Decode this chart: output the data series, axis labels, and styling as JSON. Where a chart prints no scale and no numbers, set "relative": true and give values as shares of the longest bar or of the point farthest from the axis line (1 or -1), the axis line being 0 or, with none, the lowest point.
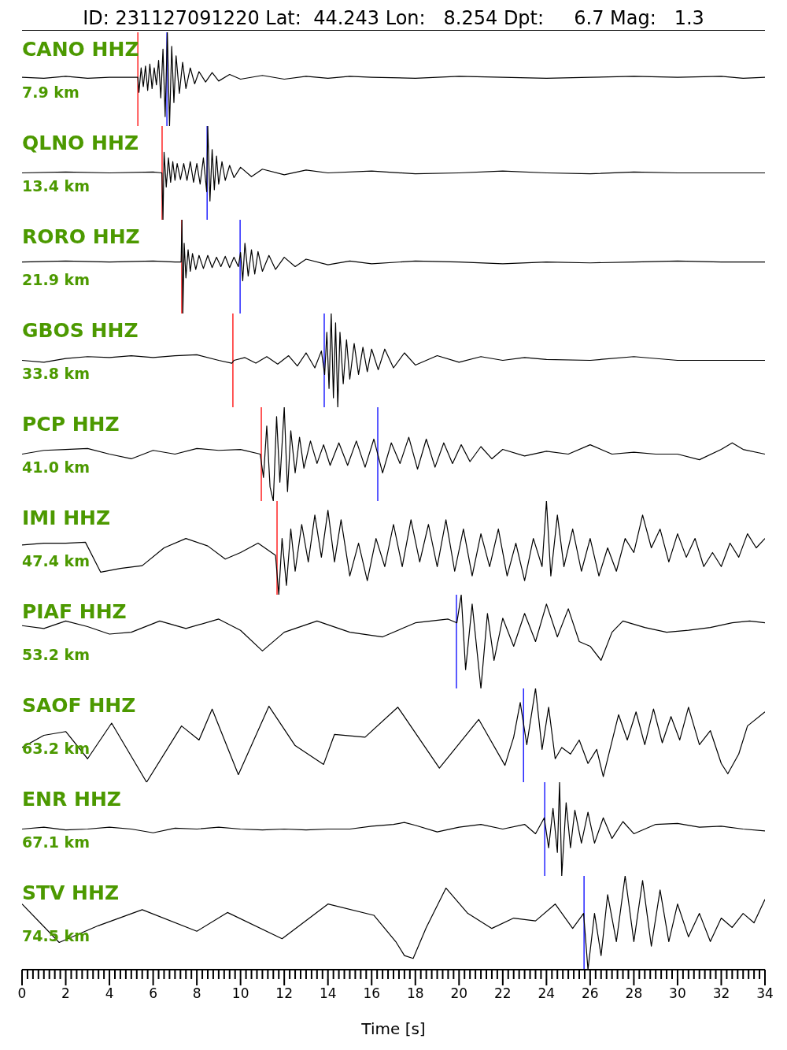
{
  "chart_data": [
    {
      "type": "line",
      "title": "ID: 231127091220 Lat:  44.243 Lon:   8.254 Dpt:     6.7 Mag:   1.3",
      "relative": true,
      "xlim": [
        0,
        34
      ],
      "tick_labels": false,
      "marker": "none",
      "annotations": [
        "CANO HHZ",
        "7.9 km"
      ],
      "ref_lines": [
        {
          "axis": "x",
          "value": 5.3,
          "color": "#ff0000"
        },
        {
          "axis": "x",
          "value": 6.63,
          "color": "#0000ff"
        }
      ],
      "series": [
        {
          "color": "#000000",
          "x": [
            0,
            1,
            2,
            3,
            4,
            5,
            5.3,
            5.35,
            5.45,
            5.55,
            5.65,
            5.75,
            5.85,
            5.95,
            6.05,
            6.15,
            6.25,
            6.35,
            6.45,
            6.55,
            6.65,
            6.75,
            6.85,
            6.95,
            7.05,
            7.2,
            7.35,
            7.5,
            7.7,
            7.9,
            8.1,
            8.4,
            8.7,
            9,
            9.5,
            10,
            11,
            12,
            13,
            14,
            15,
            16,
            18,
            20,
            22,
            24,
            26,
            28,
            30,
            32,
            33,
            34
          ],
          "values": [
            0.52,
            0.51,
            0.53,
            0.51,
            0.52,
            0.52,
            0.52,
            0.36,
            0.62,
            0.42,
            0.64,
            0.38,
            0.66,
            0.4,
            0.62,
            0.44,
            0.7,
            0.3,
            0.82,
            0.1,
            1.0,
            0.0,
            0.85,
            0.25,
            0.75,
            0.35,
            0.68,
            0.4,
            0.62,
            0.45,
            0.58,
            0.47,
            0.57,
            0.48,
            0.55,
            0.5,
            0.54,
            0.5,
            0.53,
            0.51,
            0.53,
            0.52,
            0.51,
            0.53,
            0.52,
            0.51,
            0.52,
            0.53,
            0.52,
            0.53,
            0.51,
            0.52
          ]
        }
      ]
    },
    {
      "type": "line",
      "relative": true,
      "xlim": [
        0,
        34
      ],
      "tick_labels": false,
      "marker": "none",
      "annotations": [
        "QLNO HHZ",
        "13.4 km"
      ],
      "ref_lines": [
        {
          "axis": "x",
          "value": 6.41,
          "color": "#ff0000"
        },
        {
          "axis": "x",
          "value": 8.47,
          "color": "#0000ff"
        }
      ],
      "series": [
        {
          "color": "#000000",
          "x": [
            0,
            2,
            4,
            6,
            6.4,
            6.45,
            6.5,
            6.6,
            6.7,
            6.8,
            6.9,
            7.0,
            7.1,
            7.25,
            7.4,
            7.55,
            7.7,
            7.85,
            8.0,
            8.15,
            8.3,
            8.45,
            8.5,
            8.6,
            8.7,
            8.8,
            8.9,
            9.0,
            9.15,
            9.3,
            9.5,
            9.7,
            10,
            10.5,
            11,
            12,
            13,
            14,
            16,
            18,
            20,
            22,
            24,
            26,
            28,
            30,
            32,
            34
          ],
          "values": [
            0.5,
            0.51,
            0.5,
            0.51,
            0.5,
            0.0,
            0.72,
            0.35,
            0.66,
            0.4,
            0.62,
            0.42,
            0.6,
            0.43,
            0.6,
            0.42,
            0.62,
            0.4,
            0.6,
            0.38,
            0.66,
            0.3,
            1.0,
            0.2,
            0.75,
            0.32,
            0.68,
            0.38,
            0.62,
            0.42,
            0.58,
            0.45,
            0.56,
            0.46,
            0.54,
            0.48,
            0.53,
            0.5,
            0.52,
            0.49,
            0.5,
            0.52,
            0.5,
            0.49,
            0.51,
            0.5,
            0.5,
            0.5
          ]
        }
      ]
    },
    {
      "type": "line",
      "relative": true,
      "xlim": [
        0,
        34
      ],
      "tick_labels": false,
      "marker": "none",
      "annotations": [
        "RORO HHZ",
        "21.9 km"
      ],
      "ref_lines": [
        {
          "axis": "x",
          "value": 7.31,
          "color": "#ff0000"
        },
        {
          "axis": "x",
          "value": 9.98,
          "color": "#0000ff"
        }
      ],
      "series": [
        {
          "color": "#000000",
          "x": [
            0,
            2,
            4,
            6,
            7,
            7.28,
            7.32,
            7.36,
            7.42,
            7.5,
            7.6,
            7.7,
            7.8,
            7.95,
            8.1,
            8.3,
            8.5,
            8.7,
            8.9,
            9.1,
            9.3,
            9.5,
            9.7,
            9.9,
            10.0,
            10.1,
            10.2,
            10.35,
            10.5,
            10.65,
            10.8,
            11,
            11.3,
            11.6,
            12,
            12.5,
            13,
            14,
            15,
            16,
            18,
            20,
            22,
            24,
            26,
            28,
            30,
            32,
            34
          ],
          "values": [
            0.55,
            0.56,
            0.55,
            0.56,
            0.55,
            0.55,
            1.0,
            0.0,
            0.75,
            0.38,
            0.68,
            0.45,
            0.64,
            0.47,
            0.62,
            0.48,
            0.62,
            0.49,
            0.6,
            0.5,
            0.61,
            0.49,
            0.6,
            0.5,
            0.65,
            0.35,
            0.75,
            0.4,
            0.68,
            0.42,
            0.66,
            0.45,
            0.62,
            0.47,
            0.6,
            0.5,
            0.58,
            0.52,
            0.56,
            0.53,
            0.56,
            0.55,
            0.53,
            0.55,
            0.54,
            0.55,
            0.56,
            0.55,
            0.55
          ]
        }
      ]
    },
    {
      "type": "line",
      "relative": true,
      "xlim": [
        0,
        34
      ],
      "tick_labels": false,
      "marker": "none",
      "annotations": [
        "GBOS HHZ",
        "33.8 km"
      ],
      "ref_lines": [
        {
          "axis": "x",
          "value": 9.65,
          "color": "#ff0000"
        },
        {
          "axis": "x",
          "value": 13.83,
          "color": "#0000ff"
        }
      ],
      "series": [
        {
          "color": "#000000",
          "x": [
            0,
            1,
            2,
            3,
            4,
            5,
            6,
            7,
            8,
            9,
            9.6,
            9.7,
            10.2,
            10.7,
            11.2,
            11.7,
            12.2,
            12.6,
            13,
            13.4,
            13.7,
            13.85,
            13.95,
            14.05,
            14.15,
            14.25,
            14.35,
            14.45,
            14.55,
            14.7,
            14.85,
            15,
            15.2,
            15.4,
            15.6,
            15.8,
            16,
            16.3,
            16.6,
            17,
            17.5,
            18,
            19,
            20,
            21,
            22,
            23,
            24,
            26,
            28,
            30,
            32,
            34
          ],
          "values": [
            0.5,
            0.48,
            0.52,
            0.54,
            0.53,
            0.55,
            0.53,
            0.55,
            0.56,
            0.5,
            0.47,
            0.5,
            0.53,
            0.47,
            0.54,
            0.46,
            0.55,
            0.44,
            0.58,
            0.42,
            0.6,
            0.35,
            0.8,
            0.2,
            1.0,
            0.1,
            0.9,
            0.0,
            0.8,
            0.25,
            0.72,
            0.3,
            0.68,
            0.35,
            0.64,
            0.38,
            0.62,
            0.4,
            0.62,
            0.42,
            0.58,
            0.45,
            0.55,
            0.48,
            0.54,
            0.5,
            0.53,
            0.51,
            0.5,
            0.54,
            0.5,
            0.5,
            0.5
          ]
        }
      ]
    },
    {
      "type": "line",
      "relative": true,
      "xlim": [
        0,
        34
      ],
      "tick_labels": false,
      "marker": "none",
      "annotations": [
        "PCP HHZ",
        "41.0 km"
      ],
      "ref_lines": [
        {
          "axis": "x",
          "value": 10.95,
          "color": "#ff0000"
        },
        {
          "axis": "x",
          "value": 16.28,
          "color": "#0000ff"
        }
      ],
      "series": [
        {
          "color": "#000000",
          "x": [
            0,
            1,
            2,
            3,
            4,
            5,
            6,
            7,
            8,
            9,
            10,
            10.9,
            11.05,
            11.2,
            11.35,
            11.5,
            11.65,
            11.8,
            12.0,
            12.15,
            12.3,
            12.5,
            12.7,
            12.9,
            13.2,
            13.5,
            13.8,
            14.1,
            14.5,
            14.9,
            15.3,
            15.7,
            16.1,
            16.5,
            16.9,
            17.3,
            17.7,
            18.1,
            18.5,
            18.9,
            19.3,
            19.7,
            20.1,
            20.5,
            21,
            21.5,
            22,
            23,
            24,
            25,
            26,
            27,
            28,
            29,
            30,
            31,
            32,
            32.5,
            33,
            34
          ],
          "values": [
            0.5,
            0.54,
            0.55,
            0.56,
            0.5,
            0.45,
            0.54,
            0.5,
            0.56,
            0.54,
            0.55,
            0.5,
            0.25,
            0.8,
            0.15,
            0.0,
            0.9,
            0.2,
            1.0,
            0.1,
            0.75,
            0.3,
            0.68,
            0.35,
            0.64,
            0.4,
            0.6,
            0.38,
            0.62,
            0.38,
            0.64,
            0.36,
            0.66,
            0.3,
            0.62,
            0.4,
            0.68,
            0.34,
            0.66,
            0.36,
            0.62,
            0.4,
            0.6,
            0.42,
            0.58,
            0.45,
            0.55,
            0.48,
            0.53,
            0.5,
            0.6,
            0.5,
            0.52,
            0.5,
            0.5,
            0.44,
            0.55,
            0.62,
            0.55,
            0.5
          ]
        }
      ]
    },
    {
      "type": "line",
      "relative": true,
      "xlim": [
        0,
        34
      ],
      "tick_labels": false,
      "marker": "none",
      "annotations": [
        "IMI HHZ",
        "47.4 km"
      ],
      "ref_lines": [
        {
          "axis": "x",
          "value": 11.67,
          "color": "#ff0000"
        }
      ],
      "series": [
        {
          "color": "#000000",
          "x": [
            0,
            1,
            2,
            2.9,
            3.6,
            4.5,
            5.5,
            6.5,
            7.5,
            8.5,
            9.3,
            10,
            10.8,
            11.6,
            11.75,
            11.9,
            12.1,
            12.3,
            12.5,
            12.8,
            13.1,
            13.4,
            13.7,
            14,
            14.3,
            14.6,
            15,
            15.4,
            15.8,
            16.2,
            16.6,
            17,
            17.4,
            17.8,
            18.2,
            18.6,
            19,
            19.4,
            19.8,
            20.2,
            20.6,
            21,
            21.4,
            21.8,
            22.2,
            22.6,
            23,
            23.4,
            23.8,
            24,
            24.2,
            24.5,
            24.8,
            25.2,
            25.6,
            26,
            26.4,
            26.8,
            27.2,
            27.6,
            28,
            28.4,
            28.8,
            29.2,
            29.6,
            30,
            30.4,
            30.8,
            31.2,
            31.6,
            32,
            32.4,
            32.8,
            33.2,
            33.6,
            34
          ],
          "values": [
            0.53,
            0.55,
            0.55,
            0.56,
            0.24,
            0.28,
            0.31,
            0.5,
            0.6,
            0.52,
            0.38,
            0.45,
            0.55,
            0.42,
            0.0,
            0.6,
            0.1,
            0.7,
            0.25,
            0.75,
            0.35,
            0.85,
            0.4,
            0.9,
            0.35,
            0.8,
            0.2,
            0.55,
            0.15,
            0.6,
            0.3,
            0.75,
            0.3,
            0.8,
            0.35,
            0.75,
            0.3,
            0.8,
            0.25,
            0.7,
            0.2,
            0.65,
            0.3,
            0.7,
            0.2,
            0.55,
            0.15,
            0.6,
            0.3,
            1.0,
            0.2,
            0.85,
            0.3,
            0.7,
            0.25,
            0.6,
            0.2,
            0.5,
            0.25,
            0.6,
            0.45,
            0.85,
            0.5,
            0.7,
            0.35,
            0.65,
            0.4,
            0.6,
            0.3,
            0.45,
            0.3,
            0.55,
            0.4,
            0.65,
            0.5,
            0.6
          ]
        }
      ]
    },
    {
      "type": "line",
      "relative": true,
      "xlim": [
        0,
        34
      ],
      "tick_labels": false,
      "marker": "none",
      "annotations": [
        "PIAF HHZ",
        "53.2 km"
      ],
      "ref_lines": [
        {
          "axis": "x",
          "value": 19.88,
          "color": "#0000ff"
        }
      ],
      "series": [
        {
          "color": "#000000",
          "x": [
            0,
            1,
            2,
            3,
            4,
            5,
            6.3,
            7.5,
            9,
            10,
            11,
            12,
            13.5,
            15,
            16.5,
            18,
            19.5,
            19.9,
            20.1,
            20.3,
            20.6,
            21,
            21.3,
            21.6,
            22,
            22.5,
            23,
            23.5,
            24,
            24.5,
            25,
            25.5,
            26,
            26.5,
            27,
            27.5,
            28.5,
            29.5,
            30.5,
            31.5,
            32.5,
            33.3,
            34
          ],
          "values": [
            0.67,
            0.64,
            0.72,
            0.66,
            0.58,
            0.6,
            0.72,
            0.64,
            0.74,
            0.62,
            0.4,
            0.6,
            0.72,
            0.6,
            0.55,
            0.7,
            0.74,
            0.7,
            1.0,
            0.2,
            0.9,
            0.0,
            0.8,
            0.3,
            0.75,
            0.45,
            0.8,
            0.5,
            0.9,
            0.55,
            0.85,
            0.5,
            0.45,
            0.3,
            0.6,
            0.72,
            0.65,
            0.6,
            0.62,
            0.65,
            0.7,
            0.72,
            0.7
          ]
        }
      ]
    },
    {
      "type": "line",
      "relative": true,
      "xlim": [
        0,
        34
      ],
      "tick_labels": false,
      "marker": "none",
      "annotations": [
        "SAOF HHZ",
        "63.2 km"
      ],
      "ref_lines": [
        {
          "axis": "x",
          "value": 22.95,
          "color": "#0000ff"
        }
      ],
      "series": [
        {
          "color": "#000000",
          "x": [
            0,
            1,
            2,
            3,
            4.1,
            5.7,
            7.3,
            8.1,
            8.7,
            9.9,
            11.3,
            12.5,
            13.8,
            14.3,
            15.7,
            17.2,
            19.1,
            20.9,
            22.1,
            22.5,
            22.8,
            23.1,
            23.5,
            23.8,
            24.1,
            24.4,
            24.7,
            25.1,
            25.5,
            25.9,
            26.3,
            26.6,
            27.3,
            27.7,
            28.1,
            28.5,
            28.9,
            29.3,
            29.7,
            30.1,
            30.5,
            31,
            31.5,
            32,
            32.3,
            32.8,
            33.2,
            34
          ],
          "values": [
            0.37,
            0.5,
            0.54,
            0.25,
            0.63,
            0.0,
            0.6,
            0.45,
            0.78,
            0.08,
            0.81,
            0.39,
            0.19,
            0.51,
            0.48,
            0.8,
            0.15,
            0.67,
            0.18,
            0.48,
            0.85,
            0.4,
            1.0,
            0.35,
            0.8,
            0.25,
            0.37,
            0.3,
            0.45,
            0.2,
            0.35,
            0.06,
            0.72,
            0.45,
            0.75,
            0.4,
            0.78,
            0.42,
            0.7,
            0.45,
            0.8,
            0.4,
            0.55,
            0.2,
            0.09,
            0.3,
            0.6,
            0.75
          ]
        }
      ]
    },
    {
      "type": "line",
      "relative": true,
      "xlim": [
        0,
        34
      ],
      "tick_labels": false,
      "marker": "none",
      "annotations": [
        "ENR HHZ",
        "67.1 km"
      ],
      "ref_lines": [
        {
          "axis": "x",
          "value": 23.92,
          "color": "#0000ff"
        }
      ],
      "series": [
        {
          "color": "#000000",
          "x": [
            0,
            1,
            2,
            3,
            4,
            5,
            6,
            7,
            8,
            9,
            10,
            11,
            12,
            13,
            14,
            15,
            16,
            17,
            17.5,
            18,
            19,
            20,
            21,
            22,
            23,
            23.5,
            23.9,
            24.1,
            24.3,
            24.5,
            24.6,
            24.7,
            24.9,
            25.1,
            25.3,
            25.6,
            25.9,
            26.2,
            26.6,
            27,
            27.5,
            28,
            29,
            30,
            31,
            32,
            33,
            34
          ],
          "values": [
            0.5,
            0.52,
            0.49,
            0.5,
            0.52,
            0.5,
            0.46,
            0.51,
            0.5,
            0.52,
            0.5,
            0.49,
            0.5,
            0.49,
            0.5,
            0.5,
            0.53,
            0.55,
            0.57,
            0.54,
            0.47,
            0.52,
            0.55,
            0.5,
            0.55,
            0.45,
            0.62,
            0.3,
            0.72,
            0.25,
            1.0,
            0.0,
            0.78,
            0.3,
            0.7,
            0.35,
            0.68,
            0.35,
            0.62,
            0.4,
            0.58,
            0.45,
            0.55,
            0.56,
            0.52,
            0.53,
            0.5,
            0.48
          ]
        }
      ]
    },
    {
      "type": "line",
      "relative": true,
      "xlim": [
        0,
        34
      ],
      "marker": "none",
      "xlabel": "Time [s]",
      "annotations": [
        "STV HHZ",
        "74.5 km"
      ],
      "ref_lines": [
        {
          "axis": "x",
          "value": 25.72,
          "color": "#0000ff"
        }
      ],
      "xticks": [
        0,
        {
          "value": 0.25,
          "label": null
        },
        {
          "value": 0.5,
          "label": null
        },
        {
          "value": 0.75,
          "label": null
        },
        {
          "value": 1,
          "label": null
        },
        {
          "value": 1.25,
          "label": null
        },
        {
          "value": 1.5,
          "label": null
        },
        {
          "value": 1.75,
          "label": null
        },
        2,
        {
          "value": 2.25,
          "label": null
        },
        {
          "value": 2.5,
          "label": null
        },
        {
          "value": 2.75,
          "label": null
        },
        {
          "value": 3,
          "label": null
        },
        {
          "value": 3.25,
          "label": null
        },
        {
          "value": 3.5,
          "label": null
        },
        {
          "value": 3.75,
          "label": null
        },
        4,
        {
          "value": 4.25,
          "label": null
        },
        {
          "value": 4.5,
          "label": null
        },
        {
          "value": 4.75,
          "label": null
        },
        {
          "value": 5,
          "label": null
        },
        {
          "value": 5.25,
          "label": null
        },
        {
          "value": 5.5,
          "label": null
        },
        {
          "value": 5.75,
          "label": null
        },
        6,
        {
          "value": 6.25,
          "label": null
        },
        {
          "value": 6.5,
          "label": null
        },
        {
          "value": 6.75,
          "label": null
        },
        {
          "value": 7,
          "label": null
        },
        {
          "value": 7.25,
          "label": null
        },
        {
          "value": 7.5,
          "label": null
        },
        {
          "value": 7.75,
          "label": null
        },
        8,
        {
          "value": 8.25,
          "label": null
        },
        {
          "value": 8.5,
          "label": null
        },
        {
          "value": 8.75,
          "label": null
        },
        {
          "value": 9,
          "label": null
        },
        {
          "value": 9.25,
          "label": null
        },
        {
          "value": 9.5,
          "label": null
        },
        {
          "value": 9.75,
          "label": null
        },
        10,
        {
          "value": 10.25,
          "label": null
        },
        {
          "value": 10.5,
          "label": null
        },
        {
          "value": 10.75,
          "label": null
        },
        {
          "value": 11,
          "label": null
        },
        {
          "value": 11.25,
          "label": null
        },
        {
          "value": 11.5,
          "label": null
        },
        {
          "value": 11.75,
          "label": null
        },
        12,
        {
          "value": 12.25,
          "label": null
        },
        {
          "value": 12.5,
          "label": null
        },
        {
          "value": 12.75,
          "label": null
        },
        {
          "value": 13,
          "label": null
        },
        {
          "value": 13.25,
          "label": null
        },
        {
          "value": 13.5,
          "label": null
        },
        {
          "value": 13.75,
          "label": null
        },
        14,
        {
          "value": 14.25,
          "label": null
        },
        {
          "value": 14.5,
          "label": null
        },
        {
          "value": 14.75,
          "label": null
        },
        {
          "value": 15,
          "label": null
        },
        {
          "value": 15.25,
          "label": null
        },
        {
          "value": 15.5,
          "label": null
        },
        {
          "value": 15.75,
          "label": null
        },
        16,
        {
          "value": 16.25,
          "label": null
        },
        {
          "value": 16.5,
          "label": null
        },
        {
          "value": 16.75,
          "label": null
        },
        {
          "value": 17,
          "label": null
        },
        {
          "value": 17.25,
          "label": null
        },
        {
          "value": 17.5,
          "label": null
        },
        {
          "value": 17.75,
          "label": null
        },
        18,
        {
          "value": 18.25,
          "label": null
        },
        {
          "value": 18.5,
          "label": null
        },
        {
          "value": 18.75,
          "label": null
        },
        {
          "value": 19,
          "label": null
        },
        {
          "value": 19.25,
          "label": null
        },
        {
          "value": 19.5,
          "label": null
        },
        {
          "value": 19.75,
          "label": null
        },
        20,
        {
          "value": 20.25,
          "label": null
        },
        {
          "value": 20.5,
          "label": null
        },
        {
          "value": 20.75,
          "label": null
        },
        {
          "value": 21,
          "label": null
        },
        {
          "value": 21.25,
          "label": null
        },
        {
          "value": 21.5,
          "label": null
        },
        {
          "value": 21.75,
          "label": null
        },
        22,
        {
          "value": 22.25,
          "label": null
        },
        {
          "value": 22.5,
          "label": null
        },
        {
          "value": 22.75,
          "label": null
        },
        {
          "value": 23,
          "label": null
        },
        {
          "value": 23.25,
          "label": null
        },
        {
          "value": 23.5,
          "label": null
        },
        {
          "value": 23.75,
          "label": null
        },
        24,
        {
          "value": 24.25,
          "label": null
        },
        {
          "value": 24.5,
          "label": null
        },
        {
          "value": 24.75,
          "label": null
        },
        {
          "value": 25,
          "label": null
        },
        {
          "value": 25.25,
          "label": null
        },
        {
          "value": 25.5,
          "label": null
        },
        {
          "value": 25.75,
          "label": null
        },
        26,
        {
          "value": 26.25,
          "label": null
        },
        {
          "value": 26.5,
          "label": null
        },
        {
          "value": 26.75,
          "label": null
        },
        {
          "value": 27,
          "label": null
        },
        {
          "value": 27.25,
          "label": null
        },
        {
          "value": 27.5,
          "label": null
        },
        {
          "value": 27.75,
          "label": null
        },
        28,
        {
          "value": 28.25,
          "label": null
        },
        {
          "value": 28.5,
          "label": null
        },
        {
          "value": 28.75,
          "label": null
        },
        {
          "value": 29,
          "label": null
        },
        {
          "value": 29.25,
          "label": null
        },
        {
          "value": 29.5,
          "label": null
        },
        {
          "value": 29.75,
          "label": null
        },
        30,
        {
          "value": 30.25,
          "label": null
        },
        {
          "value": 30.5,
          "label": null
        },
        {
          "value": 30.75,
          "label": null
        },
        {
          "value": 31,
          "label": null
        },
        {
          "value": 31.25,
          "label": null
        },
        {
          "value": 31.5,
          "label": null
        },
        {
          "value": 31.75,
          "label": null
        },
        32,
        {
          "value": 32.25,
          "label": null
        },
        {
          "value": 32.5,
          "label": null
        },
        {
          "value": 32.75,
          "label": null
        },
        {
          "value": 33,
          "label": null
        },
        {
          "value": 33.25,
          "label": null
        },
        {
          "value": 33.5,
          "label": null
        },
        {
          "value": 33.75,
          "label": null
        },
        34
      ],
      "series": [
        {
          "color": "#000000",
          "x": [
            0,
            1.7,
            3.5,
            5.5,
            8,
            9.4,
            11.9,
            14,
            16.1,
            17.1,
            17.5,
            17.9,
            18.5,
            19.4,
            20.4,
            21.5,
            22.5,
            23.5,
            24.4,
            25.2,
            25.7,
            25.9,
            26.2,
            26.5,
            26.8,
            27.2,
            27.6,
            28,
            28.4,
            28.8,
            29.2,
            29.6,
            30,
            30.5,
            31,
            31.5,
            32,
            32.5,
            33,
            33.5,
            34
          ],
          "values": [
            0.7,
            0.29,
            0.47,
            0.64,
            0.41,
            0.61,
            0.33,
            0.7,
            0.58,
            0.3,
            0.15,
            0.12,
            0.45,
            0.87,
            0.6,
            0.44,
            0.55,
            0.52,
            0.7,
            0.44,
            0.6,
            0.0,
            0.6,
            0.15,
            0.8,
            0.3,
            1.0,
            0.3,
            0.95,
            0.25,
            0.85,
            0.3,
            0.7,
            0.35,
            0.6,
            0.3,
            0.55,
            0.45,
            0.6,
            0.5,
            0.75
          ]
        }
      ]
    }
  ]
}
